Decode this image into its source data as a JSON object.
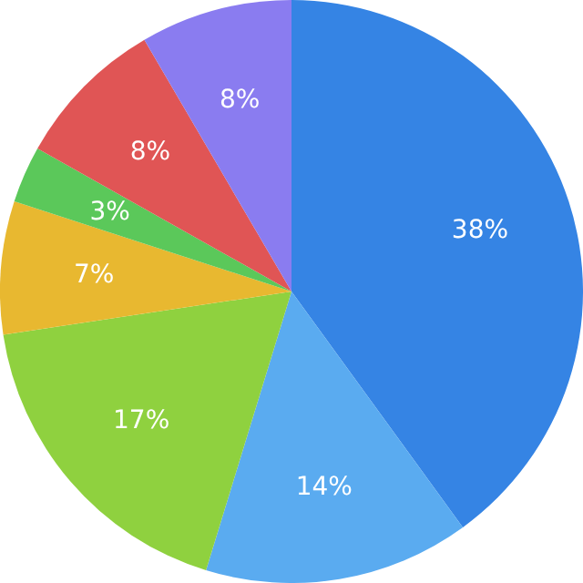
{
  "chart_data": {
    "type": "pie",
    "categories": [
      null,
      null,
      null,
      null,
      null,
      null,
      null
    ],
    "values": [
      38,
      14,
      17,
      7,
      3,
      8,
      8
    ],
    "colors": [
      "#3584e4",
      "#5aabf0",
      "#8fd13f",
      "#e8b830",
      "#5bc85a",
      "#e05555",
      "#8a7cf0"
    ],
    "value_labels": [
      "38%",
      "14%",
      "17%",
      "7%",
      "3%",
      "8%",
      "8%"
    ],
    "legend": false
  }
}
